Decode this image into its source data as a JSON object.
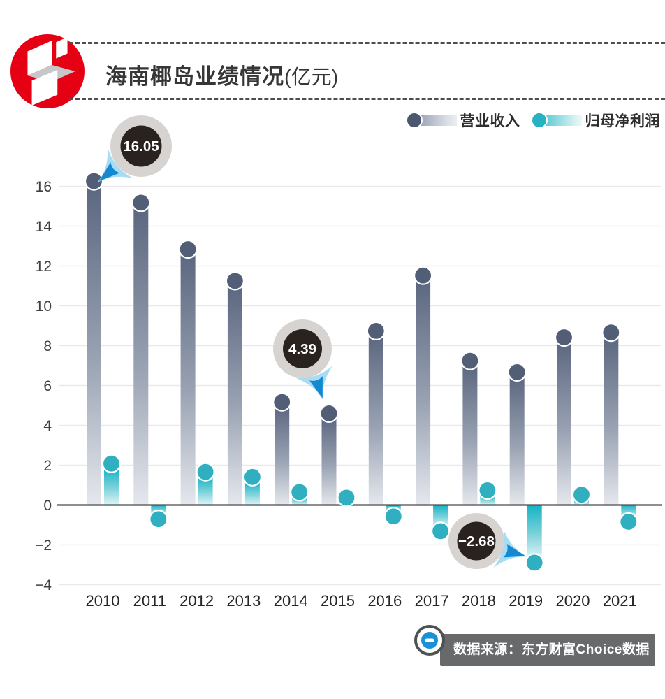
{
  "title": {
    "main": "海南椰岛业绩情况",
    "unit": "(亿元)"
  },
  "legend": [
    {
      "label": "营业收入",
      "color": "#4d5870"
    },
    {
      "label": "归母净利润",
      "color": "#27b1c3"
    }
  ],
  "source": {
    "text": "数据来源：东方财富Choice数据"
  },
  "colors": {
    "revenue_top": "#5b6780",
    "revenue_bottom": "#e5e8ed",
    "revenue_cap": "#525e76",
    "profit_top": "#13b3c5",
    "profit_bottom": "#def4f6",
    "profit_cap": "#2fafc0",
    "bubble_inner": "#2a221f",
    "bubble_ring": "#d6d3d0",
    "sparkle_light": "#a8dcf5",
    "sparkle_dark": "#1389d1",
    "logo_red": "#e60014",
    "zero_line": "#4b4b4b",
    "gridline": "#e9e9e9"
  },
  "chart_data": {
    "type": "bar",
    "title": "海南椰岛业绩情况(亿元)",
    "categories": [
      "2010",
      "2011",
      "2012",
      "2013",
      "2014",
      "2015",
      "2016",
      "2017",
      "2018",
      "2019",
      "2020",
      "2021"
    ],
    "series": [
      {
        "name": "营业收入",
        "values": [
          16.05,
          14.97,
          12.63,
          11.04,
          4.96,
          4.39,
          8.53,
          11.31,
          7.03,
          6.46,
          8.21,
          8.45
        ]
      },
      {
        "name": "归母净利润",
        "values": [
          1.87,
          -0.5,
          1.45,
          1.2,
          0.44,
          0.16,
          -0.36,
          -1.1,
          0.53,
          -2.68,
          0.31,
          -0.63
        ]
      }
    ],
    "ylim": [
      -4,
      16
    ],
    "yticks": [
      16,
      14,
      12,
      10,
      8,
      6,
      4,
      2,
      0,
      -2,
      -4
    ],
    "grid": true,
    "legend_position": "top-right",
    "callouts": [
      {
        "label": "16.05",
        "series": 0,
        "category": "2010"
      },
      {
        "label": "4.39",
        "series": 0,
        "category": "2015"
      },
      {
        "label": "−2.68",
        "series": 1,
        "category": "2019"
      }
    ]
  }
}
